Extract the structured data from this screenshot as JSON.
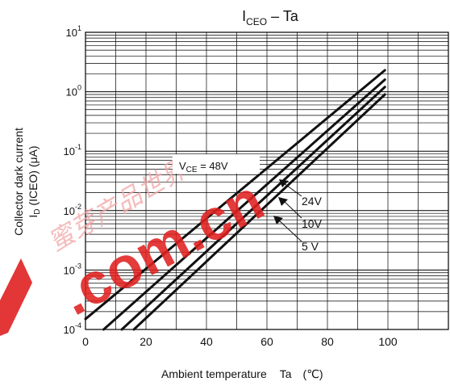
{
  "chart_data": {
    "type": "line",
    "title": {
      "main": "I",
      "sub": "CEO",
      "rest": " – Ta"
    },
    "xlabel": {
      "text": "Ambient temperature",
      "symbol": "Ta",
      "unit": "(℃)"
    },
    "ylabel": {
      "line1": "Collector dark current",
      "line2": "I",
      "line2_sub": "D",
      "line2_rest": " (ICEO) (μA)"
    },
    "x_ticks": [
      "0",
      "20",
      "40",
      "60",
      "80",
      "100"
    ],
    "x_tick_values": [
      0,
      20,
      40,
      60,
      80,
      100
    ],
    "xlim": [
      0,
      120
    ],
    "y_scale": "log",
    "ylim": [
      0.0001,
      10
    ],
    "y_ticks": [
      {
        "base": "10",
        "exp": "-4",
        "value": 0.0001
      },
      {
        "base": "10",
        "exp": "-3",
        "value": 0.001
      },
      {
        "base": "10",
        "exp": "-2",
        "value": 0.01
      },
      {
        "base": "10",
        "exp": "-1",
        "value": 0.1
      },
      {
        "base": "10",
        "exp": "0",
        "value": 1
      },
      {
        "base": "10",
        "exp": "1",
        "value": 10
      }
    ],
    "grid": true,
    "series": [
      {
        "name": "48V",
        "x": [
          0,
          99
        ],
        "y": [
          0.00015,
          2.3
        ]
      },
      {
        "name": "24V",
        "x": [
          6,
          99
        ],
        "y": [
          0.0001,
          1.6
        ]
      },
      {
        "name": "10V",
        "x": [
          12,
          99
        ],
        "y": [
          0.0001,
          1.2
        ]
      },
      {
        "name": "5V",
        "x": [
          16,
          99
        ],
        "y": [
          0.0001,
          0.9
        ]
      }
    ],
    "annotations": {
      "vce": {
        "prefix": "V",
        "sub": "CE",
        "rest": " = 48V"
      },
      "labels": [
        "24V",
        "10V",
        "5 V"
      ]
    }
  },
  "watermark": {
    "domain": ".com.cn",
    "chars": "蜜芽产品世界"
  },
  "colors": {
    "curve": "#111111",
    "grid": "#000000",
    "watermark_red": "#e02020",
    "watermark_pink": "#f2a6a6"
  }
}
